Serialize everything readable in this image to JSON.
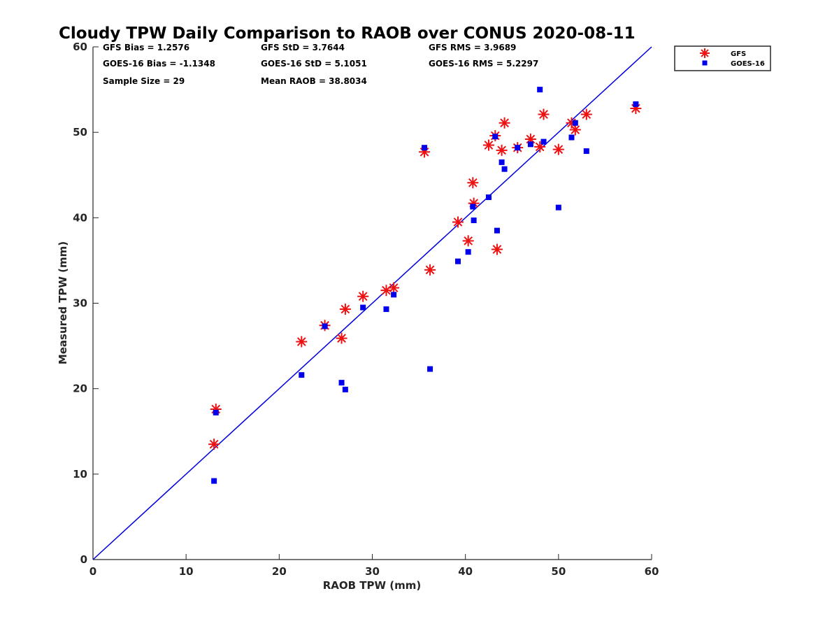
{
  "chart_data": {
    "type": "scatter",
    "title": "Cloudy TPW Daily Comparison to RAOB over CONUS 2020-08-11",
    "xlabel": "RAOB TPW (mm)",
    "ylabel": "Measured TPW (mm)",
    "xlim": [
      0,
      60
    ],
    "ylim": [
      0,
      60
    ],
    "xticks": [
      "0",
      "10",
      "20",
      "30",
      "40",
      "50",
      "60"
    ],
    "yticks": [
      "0",
      "10",
      "20",
      "30",
      "40",
      "50",
      "60"
    ],
    "grid": false,
    "legend_position": "outside-top-right",
    "reference_line": {
      "x": [
        0,
        60
      ],
      "y": [
        0,
        60
      ],
      "color": "#0000dd"
    },
    "stats": [
      {
        "text": "GFS Bias = 1.2576"
      },
      {
        "text": "GFS StD = 3.7644"
      },
      {
        "text": "GFS RMS = 3.9689"
      },
      {
        "text": "GOES-16 Bias = -1.1348"
      },
      {
        "text": "GOES-16 StD = 5.1051"
      },
      {
        "text": "GOES-16 RMS = 5.2297"
      },
      {
        "text": "Sample Size = 29"
      },
      {
        "text": "Mean RAOB = 38.8034"
      }
    ],
    "series": [
      {
        "name": "GFS",
        "marker": "asterisk",
        "color": "#ee1111",
        "points": [
          [
            13.2,
            17.6
          ],
          [
            13.0,
            13.5
          ],
          [
            22.4,
            25.5
          ],
          [
            24.9,
            27.4
          ],
          [
            26.7,
            25.9
          ],
          [
            27.1,
            29.3
          ],
          [
            29.0,
            30.8
          ],
          [
            31.5,
            31.5
          ],
          [
            32.3,
            31.8
          ],
          [
            35.6,
            47.7
          ],
          [
            36.2,
            33.9
          ],
          [
            39.2,
            39.5
          ],
          [
            40.3,
            37.3
          ],
          [
            40.8,
            44.1
          ],
          [
            40.9,
            41.7
          ],
          [
            42.5,
            48.5
          ],
          [
            43.2,
            49.6
          ],
          [
            43.4,
            36.3
          ],
          [
            43.9,
            47.9
          ],
          [
            44.2,
            51.1
          ],
          [
            45.6,
            48.2
          ],
          [
            47.0,
            49.2
          ],
          [
            48.0,
            48.3
          ],
          [
            48.4,
            52.1
          ],
          [
            50.0,
            48.0
          ],
          [
            51.4,
            51.1
          ],
          [
            51.8,
            50.3
          ],
          [
            53.0,
            52.1
          ],
          [
            58.3,
            52.8
          ]
        ]
      },
      {
        "name": "GOES-16",
        "marker": "square",
        "color": "#0000ee",
        "points": [
          [
            13.2,
            17.2
          ],
          [
            13.0,
            9.2
          ],
          [
            22.4,
            21.6
          ],
          [
            24.9,
            27.3
          ],
          [
            26.7,
            20.7
          ],
          [
            27.1,
            19.9
          ],
          [
            29.0,
            29.5
          ],
          [
            31.5,
            29.3
          ],
          [
            32.3,
            31.0
          ],
          [
            35.6,
            48.2
          ],
          [
            36.2,
            22.3
          ],
          [
            39.2,
            34.9
          ],
          [
            40.3,
            36.0
          ],
          [
            40.8,
            41.3
          ],
          [
            40.9,
            39.7
          ],
          [
            42.5,
            42.4
          ],
          [
            43.2,
            49.5
          ],
          [
            43.4,
            38.5
          ],
          [
            43.9,
            46.5
          ],
          [
            44.2,
            45.7
          ],
          [
            45.6,
            48.2
          ],
          [
            47.0,
            48.6
          ],
          [
            48.0,
            55.0
          ],
          [
            48.4,
            48.9
          ],
          [
            50.0,
            41.2
          ],
          [
            51.4,
            49.4
          ],
          [
            51.8,
            51.1
          ],
          [
            53.0,
            47.8
          ],
          [
            58.3,
            53.3
          ]
        ]
      }
    ]
  }
}
